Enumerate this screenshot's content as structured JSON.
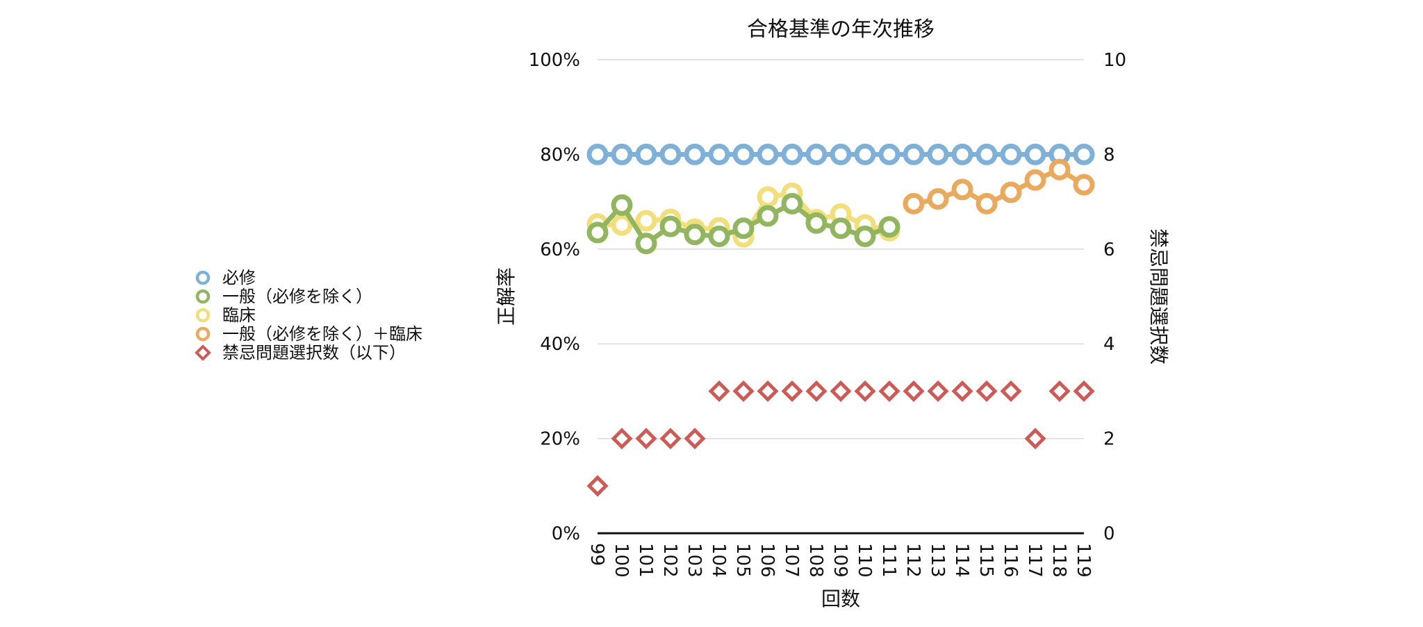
{
  "chart_data": {
    "type": "line",
    "title": "合格基準の年次推移",
    "xlabel": "回数",
    "ylabel_left": "正解率",
    "ylabel_right": "禁忌問題選択数",
    "categories": [
      "99",
      "100",
      "101",
      "102",
      "103",
      "104",
      "105",
      "106",
      "107",
      "108",
      "109",
      "110",
      "111",
      "112",
      "113",
      "114",
      "115",
      "116",
      "117",
      "118",
      "119"
    ],
    "left_axis": {
      "range": [
        0,
        100
      ],
      "ticks": [
        "0%",
        "20%",
        "40%",
        "60%",
        "80%",
        "100%"
      ],
      "tick_values": [
        0,
        20,
        40,
        60,
        80,
        100
      ]
    },
    "right_axis": {
      "range": [
        0,
        10
      ],
      "ticks": [
        "0",
        "2",
        "4",
        "6",
        "8",
        "10"
      ],
      "tick_values": [
        0,
        2,
        4,
        6,
        8,
        10
      ]
    },
    "grid": true,
    "legend_position": "left",
    "series": [
      {
        "name": "必修",
        "axis": "left",
        "marker": "circle",
        "color": "#7fb0d8",
        "values": [
          80,
          80,
          80,
          80,
          80,
          80,
          80,
          80,
          80,
          80,
          80,
          80,
          80,
          80,
          80,
          80,
          80,
          80,
          80,
          80,
          80
        ]
      },
      {
        "name": "臨床",
        "axis": "left",
        "marker": "circle",
        "color": "#f2de7a",
        "values": [
          65.3,
          65.1,
          66.0,
          66.3,
          64.2,
          64.5,
          62.6,
          71.0,
          71.8,
          66.2,
          67.4,
          65.1,
          63.9,
          null,
          null,
          null,
          null,
          null,
          null,
          null,
          null
        ]
      },
      {
        "name": "一般（必修を除く）",
        "axis": "left",
        "marker": "circle",
        "color": "#92b560",
        "values": [
          63.5,
          69.3,
          61.2,
          64.8,
          63.1,
          62.7,
          64.4,
          67.0,
          69.6,
          65.5,
          64.4,
          62.7,
          64.7,
          null,
          null,
          null,
          null,
          null,
          null,
          null,
          null
        ]
      },
      {
        "name": "一般（必修を除く）＋臨床",
        "axis": "left",
        "marker": "circle",
        "color": "#eaaa5e",
        "values": [
          null,
          null,
          null,
          null,
          null,
          null,
          null,
          null,
          null,
          null,
          null,
          null,
          null,
          69.6,
          70.6,
          72.6,
          69.6,
          72.0,
          74.6,
          76.8,
          73.6
        ]
      },
      {
        "name": "禁忌問題選択数（以下）",
        "axis": "right",
        "marker": "diamond",
        "color": "#cc5a56",
        "values": [
          1,
          2,
          2,
          2,
          2,
          3,
          3,
          3,
          3,
          3,
          3,
          3,
          3,
          3,
          3,
          3,
          3,
          3,
          2,
          3,
          3
        ]
      }
    ],
    "legend": [
      {
        "label": "必修",
        "color": "#7fb0d8",
        "marker": "circle"
      },
      {
        "label": "一般（必修を除く）",
        "color": "#92b560",
        "marker": "circle"
      },
      {
        "label": "臨床",
        "color": "#f2de7a",
        "marker": "circle"
      },
      {
        "label": "一般（必修を除く）＋臨床",
        "color": "#eaaa5e",
        "marker": "circle"
      },
      {
        "label": "禁忌問題選択数（以下）",
        "color": "#cc5a56",
        "marker": "diamond"
      }
    ]
  }
}
